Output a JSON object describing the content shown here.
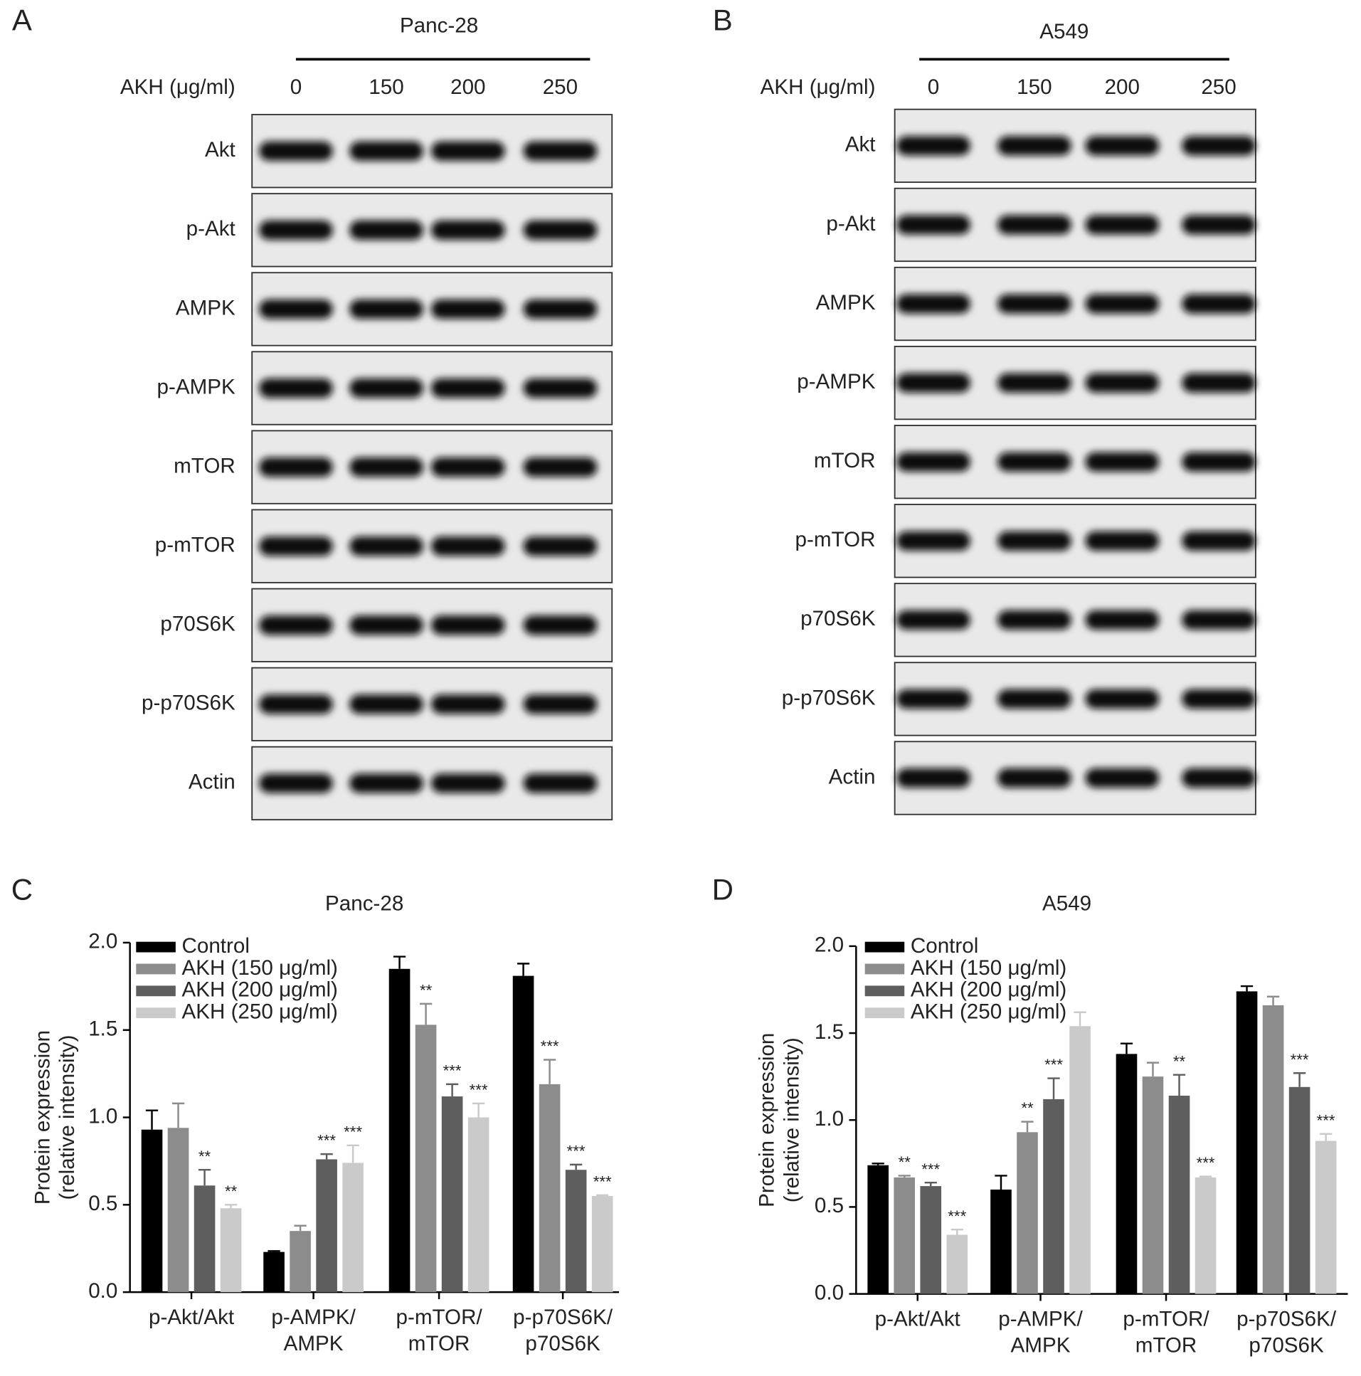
{
  "blots": [
    {
      "panel": "A",
      "title": "Panc-28",
      "dose_label": "AKH (μg/ml)",
      "doses": [
        "0",
        "150",
        "200",
        "250"
      ],
      "proteins": [
        "Akt",
        "p-Akt",
        "AMPK",
        "p-AMPK",
        "mTOR",
        "p-mTOR",
        "p70S6K",
        "p-p70S6K",
        "Actin"
      ]
    },
    {
      "panel": "B",
      "title": "A549",
      "dose_label": "AKH (μg/ml)",
      "doses": [
        "0",
        "150",
        "200",
        "250"
      ],
      "proteins": [
        "Akt",
        "p-Akt",
        "AMPK",
        "p-AMPK",
        "mTOR",
        "p-mTOR",
        "p70S6K",
        "p-p70S6K",
        "Actin"
      ]
    }
  ],
  "chart_data": [
    {
      "type": "bar",
      "panel": "C",
      "title": "Panc-28",
      "ylabel": [
        "Protein expression",
        "(relative intensity)"
      ],
      "categories": [
        "p-Akt/Akt",
        "p-AMPK/\nAMPK",
        "p-mTOR/\nmTOR",
        "p-p70S6K/\np70S6K"
      ],
      "ylim": [
        0,
        2
      ],
      "yticks": [
        {
          "value": 0,
          "label": "0.0"
        },
        0.5,
        {
          "value": 1,
          "label": "1.0"
        },
        1.5,
        {
          "value": 2,
          "label": "2.0"
        }
      ],
      "series": [
        {
          "name": "Control",
          "color": "#000000",
          "values": [
            0.93,
            0.23,
            1.85,
            1.81
          ],
          "errors": [
            0.11,
            0.005,
            0.07,
            0.07
          ],
          "significance": [
            null,
            null,
            null,
            null
          ]
        },
        {
          "name": "AKH (150 μg/ml)",
          "color": "#8c8c8c",
          "values": [
            0.94,
            0.35,
            1.53,
            1.19
          ],
          "errors": [
            0.14,
            0.03,
            0.12,
            0.14
          ],
          "significance": [
            null,
            null,
            "**",
            "***"
          ]
        },
        {
          "name": "AKH (200 μg/ml)",
          "color": "#5e5e5e",
          "values": [
            0.61,
            0.76,
            1.12,
            0.7
          ],
          "errors": [
            0.09,
            0.03,
            0.07,
            0.03
          ],
          "significance": [
            "**",
            "***",
            "***",
            "***"
          ]
        },
        {
          "name": "AKH (250 μg/ml)",
          "color": "#cacaca",
          "values": [
            0.48,
            0.74,
            1.0,
            0.55
          ],
          "errors": [
            0.02,
            0.1,
            0.08,
            0.005
          ],
          "significance": [
            "**",
            "***",
            "***",
            "***"
          ]
        }
      ]
    },
    {
      "type": "bar",
      "panel": "D",
      "title": "A549",
      "ylabel": [
        "Protein expression",
        "(relative intensity)"
      ],
      "categories": [
        "p-Akt/Akt",
        "p-AMPK/\nAMPK",
        "p-mTOR/\nmTOR",
        "p-p70S6K/\np70S6K"
      ],
      "ylim": [
        0,
        2
      ],
      "yticks": [
        {
          "value": 0,
          "label": "0.0"
        },
        0.5,
        {
          "value": 1,
          "label": "1.0"
        },
        1.5,
        {
          "value": 2,
          "label": "2.0"
        }
      ],
      "series": [
        {
          "name": "Control",
          "color": "#000000",
          "values": [
            0.74,
            0.6,
            1.38,
            1.74
          ],
          "errors": [
            0.01,
            0.08,
            0.06,
            0.03
          ],
          "significance": [
            null,
            null,
            null,
            null
          ]
        },
        {
          "name": "AKH (150 μg/ml)",
          "color": "#8c8c8c",
          "values": [
            0.67,
            0.93,
            1.25,
            1.66
          ],
          "errors": [
            0.01,
            0.06,
            0.08,
            0.05
          ],
          "significance": [
            "**",
            "**",
            null,
            null
          ]
        },
        {
          "name": "AKH (200 μg/ml)",
          "color": "#5e5e5e",
          "values": [
            0.62,
            1.12,
            1.14,
            1.19
          ],
          "errors": [
            0.02,
            0.12,
            0.12,
            0.08
          ],
          "significance": [
            "***",
            "***",
            "**",
            "***"
          ]
        },
        {
          "name": "AKH (250 μg/ml)",
          "color": "#cacaca",
          "values": [
            0.34,
            1.54,
            0.67,
            0.88
          ],
          "errors": [
            0.03,
            0.08,
            0.005,
            0.04
          ],
          "significance": [
            "***",
            null,
            "***",
            "***"
          ]
        }
      ]
    }
  ]
}
